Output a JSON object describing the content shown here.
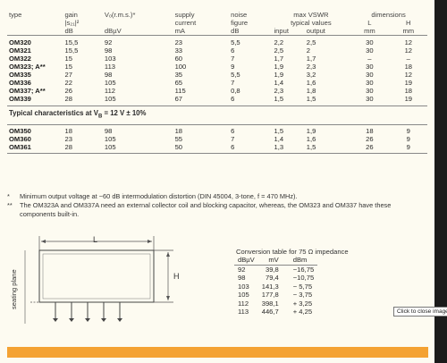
{
  "spec_table": {
    "headers": {
      "type": "type",
      "gain": "gain",
      "gain_sym": "|s₂₁|²",
      "gain_unit": "dB",
      "vo": "Vₒ(r.m.s.)*",
      "vo_unit": "dBµV",
      "supply1": "supply",
      "supply2": "current",
      "supply_unit": "mA",
      "noise1": "noise",
      "noise2": "figure",
      "noise_unit": "dB",
      "vswr1": "max VSWR",
      "vswr2": "typical values",
      "vswr_in": "input",
      "vswr_out": "output",
      "dim1": "dimensions",
      "dim_l": "L",
      "dim_h": "H",
      "dim_unit_l": "mm",
      "dim_unit_h": "mm"
    },
    "rows": [
      {
        "type": "OM320",
        "gain": "15,5",
        "vo": "92",
        "supply": "23",
        "noise": "5,5",
        "vin": "2,2",
        "vout": "2,5",
        "l": "30",
        "h": "12"
      },
      {
        "type": "OM321",
        "gain": "15,5",
        "vo": "98",
        "supply": "33",
        "noise": "6",
        "vin": "2,5",
        "vout": "2",
        "l": "30",
        "h": "12"
      },
      {
        "type": "OM322",
        "gain": "15",
        "vo": "103",
        "supply": "60",
        "noise": "7",
        "vin": "1,7",
        "vout": "1,7",
        "l": "–",
        "h": "–"
      },
      {
        "type": "OM323; A**",
        "gain": "15",
        "vo": "113",
        "supply": "100",
        "noise": "9",
        "vin": "1,9",
        "vout": "2,3",
        "l": "30",
        "h": "18"
      },
      {
        "type": "OM335",
        "gain": "27",
        "vo": "98",
        "supply": "35",
        "noise": "5,5",
        "vin": "1,9",
        "vout": "3,2",
        "l": "30",
        "h": "12"
      },
      {
        "type": "OM336",
        "gain": "22",
        "vo": "105",
        "supply": "65",
        "noise": "7",
        "vin": "1,4",
        "vout": "1,6",
        "l": "30",
        "h": "19"
      },
      {
        "type": "OM337; A**",
        "gain": "26",
        "vo": "112",
        "supply": "115",
        "noise": "0,8",
        "vin": "2,3",
        "vout": "1,8",
        "l": "30",
        "h": "18"
      },
      {
        "type": "OM339",
        "gain": "28",
        "vo": "105",
        "supply": "67",
        "noise": "6",
        "vin": "1,5",
        "vout": "1,5",
        "l": "30",
        "h": "19"
      }
    ],
    "typical_label": "Typical characteristics at V",
    "typical_sub": "B",
    "typical_rest": " = 12 V ± 10%",
    "typical_rows": [
      {
        "type": "OM350",
        "gain": "18",
        "vo": "98",
        "supply": "18",
        "noise": "6",
        "vin": "1,5",
        "vout": "1,9",
        "l": "18",
        "h": "9"
      },
      {
        "type": "OM360",
        "gain": "23",
        "vo": "105",
        "supply": "55",
        "noise": "7",
        "vin": "1,4",
        "vout": "1,6",
        "l": "26",
        "h": "9"
      },
      {
        "type": "OM361",
        "gain": "28",
        "vo": "105",
        "supply": "50",
        "noise": "6",
        "vin": "1,3",
        "vout": "1,5",
        "l": "26",
        "h": "9"
      }
    ]
  },
  "notes": [
    {
      "mark": "*",
      "text": "Minimum output voltage at −60 dB intermodulation distortion (DIN 45004, 3-tone, f = 470 MHz)."
    },
    {
      "mark": "**",
      "text": "The OM323A and OM337A need an external collector coil and blocking capacitor, whereas, the OM323 and OM337 have these components built-in."
    }
  ],
  "diagram": {
    "label_l": "L",
    "label_h": "H",
    "label_seating": "seating plane"
  },
  "conversion": {
    "title": "Conversion table for 75 Ω impedance",
    "headers": [
      "dBµV",
      "mV",
      "dBm"
    ],
    "rows": [
      [
        "92",
        "39,8",
        "−16,75"
      ],
      [
        "98",
        "79,4",
        "−10,75"
      ],
      [
        "103",
        "141,3",
        "− 5,75"
      ],
      [
        "105",
        "177,8",
        "− 3,75"
      ],
      [
        "112",
        "398,1",
        "+ 3,25"
      ],
      [
        "113",
        "446,7",
        "+ 4,25"
      ]
    ]
  },
  "tooltip": "Click to close image,",
  "colors": {
    "accent_bar": "#f4a233",
    "page": "#fdfbf1"
  }
}
